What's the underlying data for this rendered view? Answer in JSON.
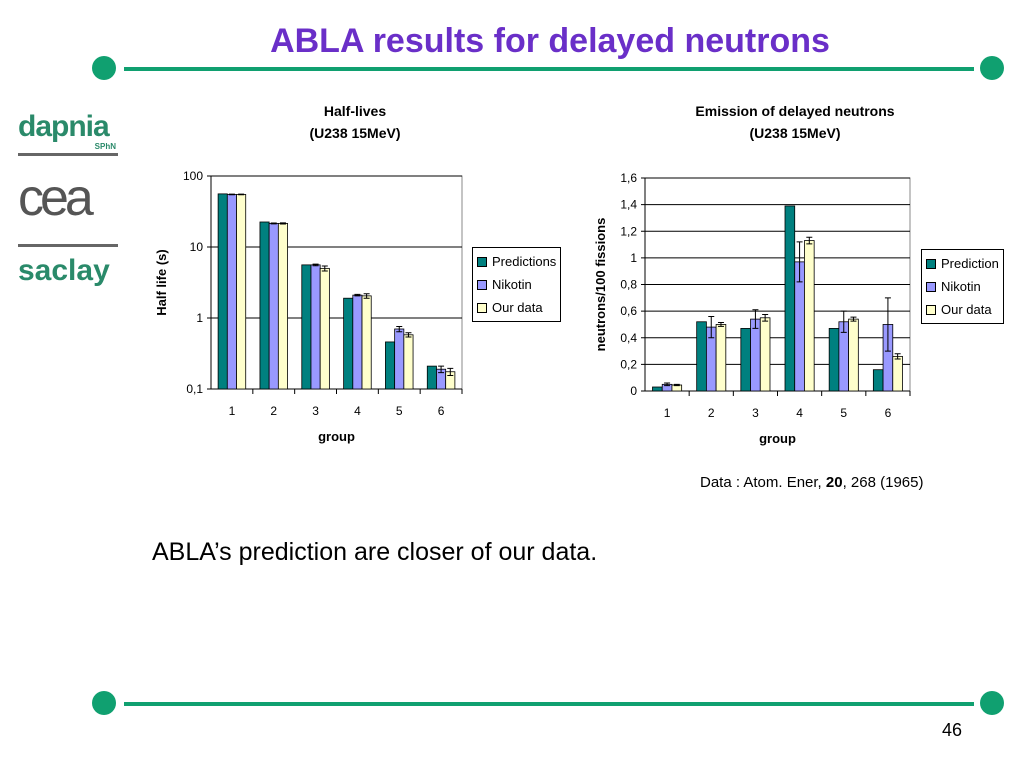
{
  "title": "ABLA results for delayed neutrons",
  "logos": {
    "dapnia": "dapnia",
    "sphn": "SPhN",
    "cea": "cea",
    "saclay": "saclay"
  },
  "colors": {
    "accent": "#10a070",
    "title": "#6a2fc8",
    "s1": "#00807f",
    "s2": "#9999ff",
    "s3": "#ffffcc"
  },
  "chart_data": [
    {
      "type": "bar",
      "title": "Half-lives",
      "subtitle": "(U238 15MeV)",
      "xlabel": "group",
      "ylabel": "Half life (s)",
      "yscale": "log",
      "ylim": [
        0.1,
        100
      ],
      "yticks": [
        {
          "v": 100,
          "label": "100"
        },
        {
          "v": 10,
          "label": "10"
        },
        {
          "v": 1,
          "label": "1"
        },
        {
          "v": 0.1,
          "label": "0,1"
        }
      ],
      "categories": [
        "1",
        "2",
        "3",
        "4",
        "5",
        "6"
      ],
      "series": [
        {
          "name": "Predictions",
          "values": [
            56,
            22.5,
            5.6,
            1.9,
            0.46,
            0.21
          ],
          "errors": [
            0,
            0,
            0,
            0,
            0,
            0
          ]
        },
        {
          "name": "Nikotin",
          "values": [
            55,
            21.5,
            5.6,
            2.1,
            0.7,
            0.19
          ],
          "errors": [
            0.5,
            0.3,
            0.15,
            0.05,
            0.06,
            0.02
          ]
        },
        {
          "name": "Our data",
          "values": [
            55,
            21.5,
            5.0,
            2.05,
            0.58,
            0.175
          ],
          "errors": [
            0.5,
            0.4,
            0.4,
            0.15,
            0.04,
            0.02
          ]
        }
      ],
      "legend": "right"
    },
    {
      "type": "bar",
      "title": "Emission of delayed neutrons",
      "subtitle": "(U238 15MeV)",
      "xlabel": "group",
      "ylabel": "neutrons/100 fissions",
      "yscale": "linear",
      "ylim": [
        0,
        1.6
      ],
      "yticks": [
        {
          "v": 1.6,
          "label": "1,6"
        },
        {
          "v": 1.4,
          "label": "1,4"
        },
        {
          "v": 1.2,
          "label": "1,2"
        },
        {
          "v": 1,
          "label": "1"
        },
        {
          "v": 0.8,
          "label": "0,8"
        },
        {
          "v": 0.6,
          "label": "0,6"
        },
        {
          "v": 0.4,
          "label": "0,4"
        },
        {
          "v": 0.2,
          "label": "0,2"
        },
        {
          "v": 0,
          "label": "0"
        }
      ],
      "categories": [
        "1",
        "2",
        "3",
        "4",
        "5",
        "6"
      ],
      "series": [
        {
          "name": "Prediction",
          "values": [
            0.03,
            0.52,
            0.47,
            1.39,
            0.47,
            0.16
          ],
          "errors": [
            0,
            0,
            0,
            0,
            0,
            0
          ]
        },
        {
          "name": "Nikotin",
          "values": [
            0.05,
            0.48,
            0.54,
            0.97,
            0.52,
            0.5
          ],
          "errors": [
            0.01,
            0.08,
            0.07,
            0.15,
            0.08,
            0.2
          ]
        },
        {
          "name": "Our data",
          "values": [
            0.045,
            0.5,
            0.55,
            1.13,
            0.54,
            0.26
          ],
          "errors": [
            0.005,
            0.015,
            0.025,
            0.025,
            0.015,
            0.02
          ]
        }
      ],
      "legend": "right"
    }
  ],
  "note": {
    "prefix": "Data : Atom. Ener, ",
    "bold": "20",
    "suffix": ", 268 (1965)"
  },
  "conclusion": "ABLA’s prediction are closer of our data.",
  "page_number": "46"
}
